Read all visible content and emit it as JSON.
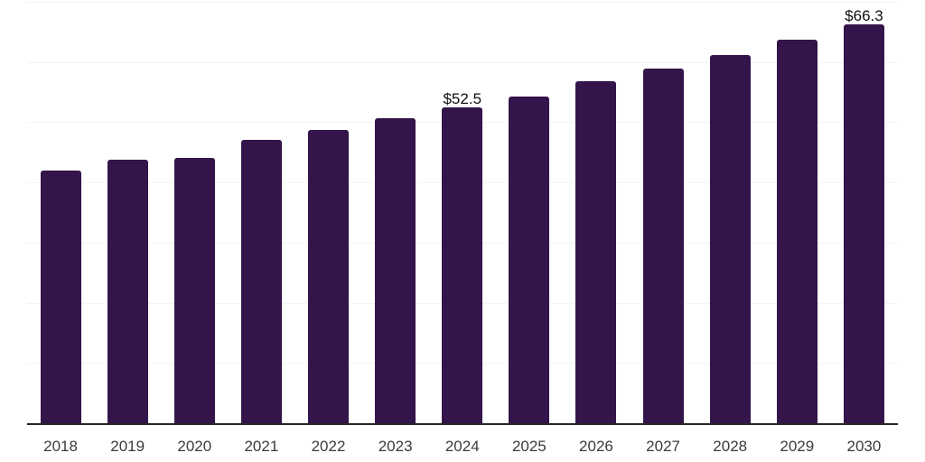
{
  "chart_data": {
    "type": "bar",
    "title": "",
    "xlabel": "",
    "ylabel": "",
    "categories": [
      "2018",
      "2019",
      "2020",
      "2021",
      "2022",
      "2023",
      "2024",
      "2025",
      "2026",
      "2027",
      "2028",
      "2029",
      "2030"
    ],
    "values": [
      42.1,
      43.9,
      44.1,
      47.1,
      48.8,
      50.7,
      52.5,
      54.4,
      56.9,
      59.0,
      61.3,
      63.8,
      66.3
    ],
    "data_labels": [
      "",
      "",
      "",
      "",
      "",
      "",
      "$52.5",
      "",
      "",
      "",
      "",
      "",
      "$66.3"
    ],
    "value_prefix": "$",
    "ylim": [
      0,
      70
    ],
    "grid_step": 10,
    "grid": "on",
    "legend": "none"
  },
  "colors": {
    "bar": "#34154B",
    "gridline": "#F3F3F5",
    "axis_line": "#262626",
    "axis_label": "#3B3B3B",
    "data_label": "#0F0F0F",
    "background": "#FFFFFF"
  }
}
